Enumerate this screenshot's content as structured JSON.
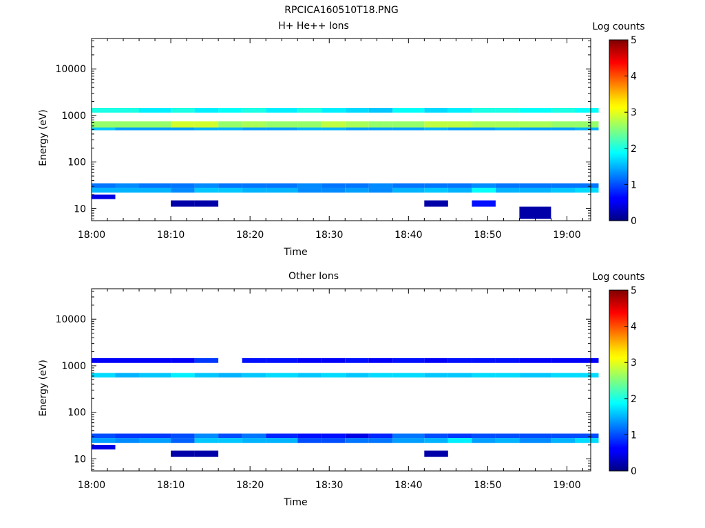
{
  "figure": {
    "title": "RPCICA160510T18.PNG"
  },
  "chart_data": [
    {
      "type": "heatmap",
      "title": "H+ He++ Ions",
      "xlabel": "Time",
      "ylabel": "Energy (eV)",
      "xscale": "time",
      "yscale": "log",
      "xlim": [
        "18:00",
        "19:03"
      ],
      "ylim": [
        5.5,
        45000
      ],
      "xticks": [
        "18:00",
        "18:10",
        "18:20",
        "18:30",
        "18:40",
        "18:50",
        "19:00"
      ],
      "yticks": [
        "10",
        "100",
        "1000",
        "10000"
      ],
      "colorbar": {
        "label": "Log counts",
        "min": 0,
        "max": 5,
        "ticks": [
          "0",
          "1",
          "2",
          "3",
          "4",
          "5"
        ],
        "colormap": "jet"
      },
      "time_bins": [
        "18:00",
        "18:03",
        "18:06",
        "18:10",
        "18:13",
        "18:16",
        "18:19",
        "18:22",
        "18:26",
        "18:29",
        "18:32",
        "18:35",
        "18:38",
        "18:42",
        "18:45",
        "18:48",
        "18:51",
        "18:54",
        "18:58",
        "19:01"
      ],
      "bands": [
        {
          "e_lo": 1150,
          "e_hi": 1450,
          "values": [
            2.0,
            2.0,
            1.8,
            2.0,
            1.8,
            1.9,
            2.0,
            1.8,
            2.0,
            1.8,
            1.7,
            1.6,
            1.9,
            1.7,
            1.8,
            2.0,
            2.0,
            1.9,
            2.0,
            1.9
          ]
        },
        {
          "e_lo": 550,
          "e_hi": 750,
          "values": [
            2.6,
            2.6,
            2.6,
            2.9,
            2.9,
            2.6,
            2.7,
            2.6,
            2.6,
            2.8,
            2.7,
            2.6,
            2.6,
            2.8,
            2.8,
            2.7,
            2.7,
            2.7,
            2.6,
            2.6
          ]
        },
        {
          "e_lo": 480,
          "e_hi": 550,
          "values": [
            1.6,
            1.4,
            1.4,
            1.4,
            1.5,
            1.5,
            1.4,
            1.4,
            1.5,
            1.5,
            1.4,
            1.4,
            1.4,
            1.5,
            1.4,
            1.4,
            1.5,
            1.4,
            1.4,
            1.5
          ]
        },
        {
          "e_lo": 28,
          "e_hi": 35,
          "values": [
            1.2,
            1.3,
            1.2,
            1.2,
            1.3,
            1.2,
            1.2,
            1.2,
            1.3,
            1.2,
            1.2,
            1.3,
            1.2,
            1.2,
            1.2,
            1.3,
            1.2,
            1.2,
            1.2,
            1.2
          ]
        },
        {
          "e_lo": 22,
          "e_hi": 28,
          "values": [
            1.5,
            1.5,
            1.5,
            1.3,
            1.6,
            1.6,
            1.5,
            1.5,
            1.3,
            1.3,
            1.4,
            1.3,
            1.5,
            1.6,
            1.5,
            1.9,
            1.5,
            1.5,
            1.6,
            1.7
          ]
        },
        {
          "e_lo": 16,
          "e_hi": 20,
          "values": [
            0.5,
            null,
            null,
            null,
            null,
            null,
            null,
            null,
            null,
            null,
            null,
            null,
            null,
            null,
            null,
            null,
            null,
            null,
            null,
            null
          ]
        },
        {
          "e_lo": 11,
          "e_hi": 15,
          "values": [
            null,
            null,
            null,
            0.2,
            0.2,
            null,
            null,
            null,
            null,
            null,
            null,
            null,
            null,
            0.2,
            null,
            0.7,
            null,
            null,
            null,
            null
          ]
        },
        {
          "e_lo": 6,
          "e_hi": 11,
          "values": [
            null,
            null,
            null,
            null,
            null,
            null,
            null,
            null,
            null,
            null,
            null,
            null,
            null,
            null,
            null,
            null,
            null,
            0.2,
            null,
            null
          ]
        }
      ]
    },
    {
      "type": "heatmap",
      "title": "Other Ions",
      "xlabel": "Time",
      "ylabel": "Energy (eV)",
      "xscale": "time",
      "yscale": "log",
      "xlim": [
        "18:00",
        "19:03"
      ],
      "ylim": [
        5.5,
        45000
      ],
      "xticks": [
        "18:00",
        "18:10",
        "18:20",
        "18:30",
        "18:40",
        "18:50",
        "19:00"
      ],
      "yticks": [
        "10",
        "100",
        "1000",
        "10000"
      ],
      "colorbar": {
        "label": "Log counts",
        "min": 0,
        "max": 5,
        "ticks": [
          "0",
          "1",
          "2",
          "3",
          "4",
          "5"
        ],
        "colormap": "jet"
      },
      "time_bins": [
        "18:00",
        "18:03",
        "18:06",
        "18:10",
        "18:13",
        "18:16",
        "18:19",
        "18:22",
        "18:26",
        "18:29",
        "18:32",
        "18:35",
        "18:38",
        "18:42",
        "18:45",
        "18:48",
        "18:51",
        "18:54",
        "18:58",
        "19:01"
      ],
      "bands": [
        {
          "e_lo": 1150,
          "e_hi": 1450,
          "values": [
            0.6,
            0.6,
            0.6,
            0.6,
            0.9,
            null,
            0.7,
            0.7,
            0.6,
            0.6,
            0.7,
            0.6,
            0.7,
            0.6,
            0.7,
            0.7,
            0.7,
            0.6,
            0.6,
            0.6
          ]
        },
        {
          "e_lo": 560,
          "e_hi": 700,
          "values": [
            1.7,
            1.5,
            1.6,
            1.8,
            1.6,
            1.5,
            1.6,
            1.7,
            1.6,
            1.7,
            1.6,
            1.7,
            1.7,
            1.6,
            1.6,
            1.7,
            1.7,
            1.6,
            1.7,
            1.7
          ]
        },
        {
          "e_lo": 28,
          "e_hi": 35,
          "values": [
            1.0,
            0.9,
            0.9,
            1.0,
            1.3,
            1.0,
            1.2,
            0.8,
            0.7,
            0.7,
            0.5,
            0.8,
            1.2,
            1.0,
            0.9,
            1.0,
            1.0,
            1.0,
            1.0,
            1.0
          ]
        },
        {
          "e_lo": 22,
          "e_hi": 28,
          "values": [
            1.4,
            1.3,
            1.4,
            1.1,
            1.6,
            1.6,
            1.5,
            1.5,
            1.0,
            1.0,
            1.2,
            1.2,
            1.4,
            1.5,
            1.8,
            1.4,
            1.5,
            1.3,
            1.5,
            1.7
          ]
        },
        {
          "e_lo": 16,
          "e_hi": 20,
          "values": [
            0.5,
            null,
            null,
            null,
            null,
            null,
            null,
            null,
            null,
            null,
            null,
            null,
            null,
            null,
            null,
            null,
            null,
            null,
            null,
            null
          ]
        },
        {
          "e_lo": 11,
          "e_hi": 15,
          "values": [
            null,
            null,
            null,
            0.2,
            0.2,
            null,
            null,
            null,
            null,
            null,
            null,
            null,
            null,
            0.2,
            null,
            null,
            null,
            null,
            null,
            null
          ]
        }
      ]
    }
  ]
}
